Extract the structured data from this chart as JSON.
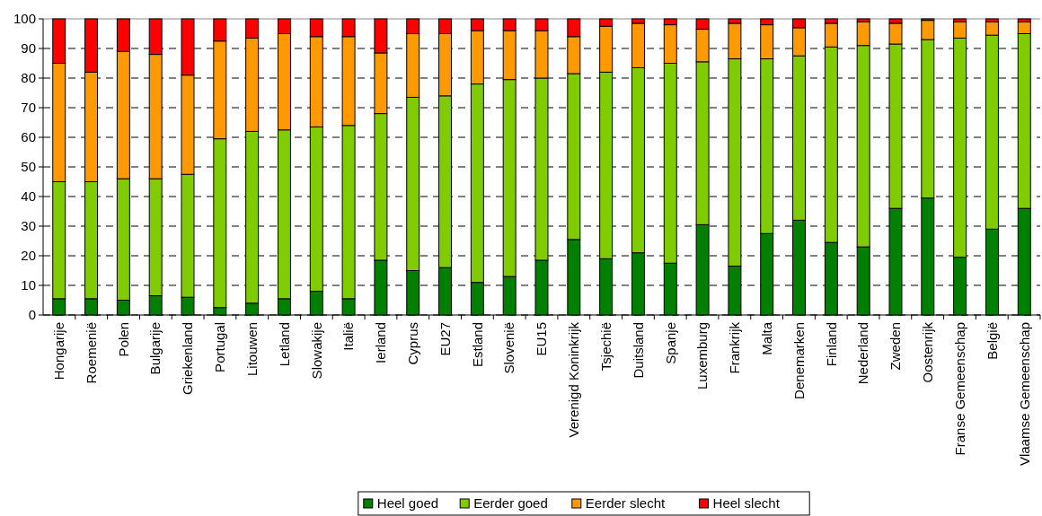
{
  "chart_data": {
    "type": "bar",
    "stacked": true,
    "categories": [
      "Hongarije",
      "Roemenië",
      "Polen",
      "Bulgarije",
      "Griekenland",
      "Portugal",
      "Litouwen",
      "Letland",
      "Slowakije",
      "Italië",
      "Ierland",
      "Cyprus",
      "EU27",
      "Estland",
      "Slovenië",
      "EU15",
      "Verenigd Koninkrijk",
      "Tsjechië",
      "Duitsland",
      "Spanje",
      "Luxemburg",
      "Frankrijk",
      "Malta",
      "Denemarken",
      "Finland",
      "Nederland",
      "Zweden",
      "Oostenrijk",
      "Franse Gemeenschap",
      "België",
      "Vlaamse Gemeenschap"
    ],
    "series": [
      {
        "name": "Heel goed",
        "color": "#007f00",
        "values": [
          5.5,
          5.5,
          5,
          6.5,
          6,
          2.5,
          4,
          5.5,
          8,
          5.5,
          18.5,
          15,
          16,
          11,
          13,
          18.5,
          25.5,
          19,
          21,
          17.5,
          30.5,
          16.5,
          27.5,
          32,
          24.5,
          23,
          36,
          39.5,
          19.5,
          29,
          36
        ]
      },
      {
        "name": "Eerder goed",
        "color": "#80cc00",
        "values": [
          39.5,
          39.5,
          41,
          39.5,
          41.5,
          57,
          58,
          57,
          55.5,
          58.5,
          49.5,
          58.5,
          58,
          67,
          66.5,
          61.5,
          56,
          63,
          62.5,
          67.5,
          55,
          70,
          59,
          55.5,
          66,
          68,
          55.5,
          53.5,
          74,
          65.5,
          59
        ]
      },
      {
        "name": "Eerder slecht",
        "color": "#ff9900",
        "values": [
          40,
          37,
          43,
          42,
          33.5,
          33,
          31.5,
          32.5,
          30.5,
          30,
          20.5,
          21.5,
          21,
          18,
          16.5,
          16,
          12.5,
          15.5,
          15,
          13,
          11,
          12,
          11.5,
          9.5,
          8,
          8,
          7,
          6.5,
          5.5,
          4.5,
          4
        ]
      },
      {
        "name": "Heel slecht",
        "color": "#ff0000",
        "values": [
          15,
          18,
          11,
          12,
          19,
          7.5,
          6.5,
          5,
          6,
          6,
          11.5,
          5,
          5,
          4,
          4,
          4,
          6,
          2.5,
          1.5,
          2,
          3.5,
          1.5,
          2,
          3,
          1.5,
          1,
          1.5,
          0.5,
          1,
          1,
          1
        ]
      }
    ],
    "ylim": [
      0,
      100
    ],
    "yticks": [
      0,
      10,
      20,
      30,
      40,
      50,
      60,
      70,
      80,
      90,
      100
    ],
    "grid": "y",
    "legend": "bottom"
  }
}
